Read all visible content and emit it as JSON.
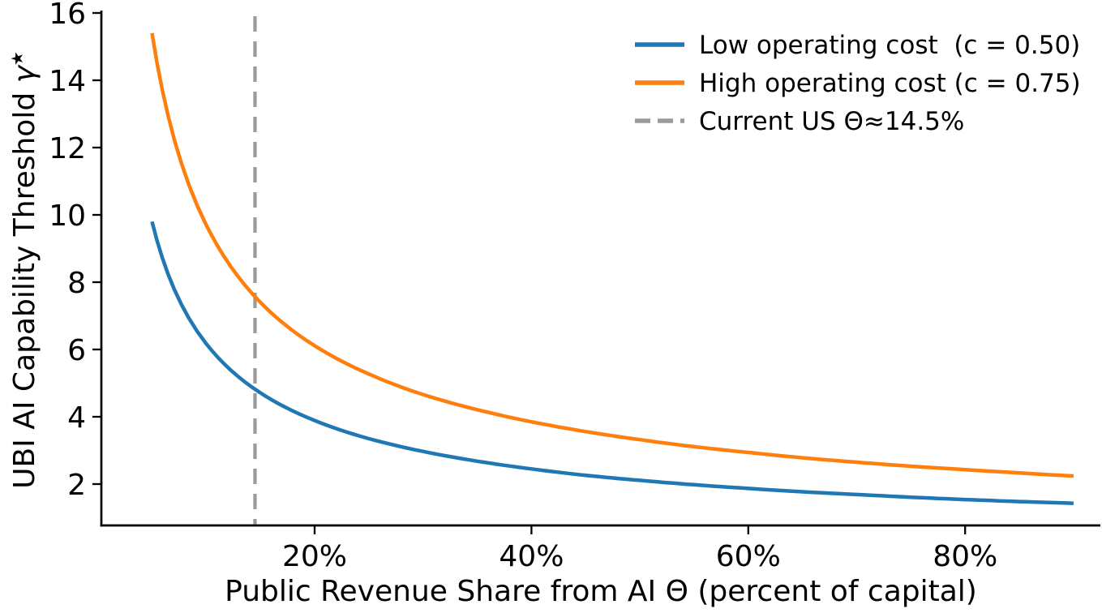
{
  "axes": {
    "xlabel": "Public Revenue Share from AI Θ (percent of capital)",
    "ylabel_prefix": "UBI AI Capability Threshold ",
    "ylabel_symbol": "γ",
    "ylabel_superscript": "★"
  },
  "legend": {
    "location": "upper right",
    "frame": false,
    "items": [
      {
        "label": "Low operating cost  (c = 0.50)",
        "color": "#1f77b4",
        "line_style": "solid"
      },
      {
        "label": "High operating cost (c = 0.75)",
        "color": "#ff7f0e",
        "line_style": "solid"
      },
      {
        "label": "Current US Θ≈14.5%",
        "color": "#9a9a9a",
        "line_style": "dashed"
      }
    ]
  },
  "chart_data": {
    "type": "line",
    "title": "",
    "xlabel": "Public Revenue Share from AI Θ (percent of capital)",
    "ylabel": "UBI AI Capability Threshold γ★",
    "x_unit": "percent",
    "x": [
      5,
      10,
      15,
      20,
      25,
      30,
      35,
      40,
      45,
      50,
      55,
      60,
      65,
      70,
      75,
      80,
      85,
      90
    ],
    "series": [
      {
        "name": "Low operating cost  (c = 0.50)",
        "color": "#1f77b4",
        "line_style": "solid",
        "values": [
          9.8,
          6.17,
          4.71,
          3.89,
          3.35,
          2.97,
          2.68,
          2.45,
          2.26,
          2.11,
          1.98,
          1.87,
          1.77,
          1.69,
          1.61,
          1.54,
          1.48,
          1.43
        ]
      },
      {
        "name": "High operating cost (c = 0.75)",
        "color": "#ff7f0e",
        "line_style": "solid",
        "values": [
          15.4,
          9.7,
          7.4,
          6.11,
          5.27,
          4.66,
          4.21,
          3.85,
          3.56,
          3.32,
          3.11,
          2.94,
          2.78,
          2.65,
          2.53,
          2.43,
          2.33,
          2.24
        ]
      }
    ],
    "vline": {
      "x": 14.5,
      "label": "Current US Θ≈14.5%",
      "color": "#9a9a9a",
      "line_style": "dashed"
    },
    "x_ticks": [
      {
        "value": 20,
        "label": "20%"
      },
      {
        "value": 40,
        "label": "40%"
      },
      {
        "value": 60,
        "label": "60%"
      },
      {
        "value": 80,
        "label": "80%"
      }
    ],
    "y_ticks": [
      {
        "value": 2,
        "label": "2"
      },
      {
        "value": 4,
        "label": "4"
      },
      {
        "value": 6,
        "label": "6"
      },
      {
        "value": 8,
        "label": "8"
      },
      {
        "value": 10,
        "label": "10"
      },
      {
        "value": 12,
        "label": "12"
      },
      {
        "value": 14,
        "label": "14"
      },
      {
        "value": 16,
        "label": "16"
      }
    ],
    "xlim_percent": [
      0.3,
      92.5
    ],
    "ylim": [
      0.77,
      16
    ],
    "grid": false,
    "legend_position": "upper right"
  }
}
